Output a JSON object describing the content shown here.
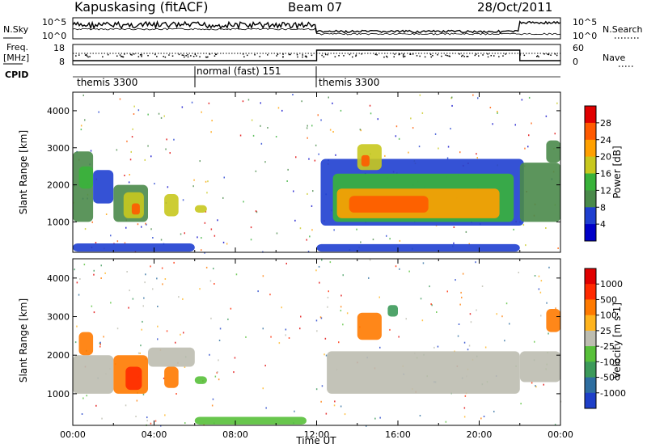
{
  "header": {
    "station": "Kapuskasing (fitACF)",
    "beam": "Beam 07",
    "date": "28/Oct/2011"
  },
  "noise_panel": {
    "left_label": "N.Sky",
    "right_label": "N.Search",
    "left_ticks": [
      "10^5",
      "10^0"
    ],
    "right_ticks": [
      "10^5",
      "10^0"
    ]
  },
  "freq_panel": {
    "left_label_1": "Freq.",
    "left_label_2": "[MHz]",
    "right_label": "Nave",
    "left_ticks": [
      "18",
      "8"
    ],
    "right_ticks": [
      "60",
      "0"
    ]
  },
  "cpid": {
    "label": "CPID",
    "segments": [
      {
        "name": "themis 3300",
        "start_hour": 0,
        "end_hour": 6
      },
      {
        "name": "normal (fast) 151",
        "start_hour": 6,
        "end_hour": 12
      },
      {
        "name": "themis 3300",
        "start_hour": 12,
        "end_hour": 24
      }
    ]
  },
  "power_colorbar": {
    "label": "Power [dB]",
    "ticks": [
      "28",
      "24",
      "20",
      "16",
      "12",
      "8",
      "4"
    ],
    "colors": [
      "#0000c8",
      "#1f3fd0",
      "#4a8a4a",
      "#39b23a",
      "#c8c81e",
      "#ffa000",
      "#ff5a00",
      "#e00000"
    ]
  },
  "velocity_colorbar": {
    "label": "Velocity [m s-1]",
    "ticks": [
      "1000",
      "500",
      "100",
      "25",
      "-25",
      "-100",
      "-500",
      "-1000"
    ],
    "colors": [
      "#1e3fc8",
      "#2e6ea0",
      "#3c9a5a",
      "#58c03a",
      "#bdbdb0",
      "#ffb41e",
      "#ff7a00",
      "#ff2a00",
      "#e00000"
    ]
  },
  "chart_data": [
    {
      "type": "heatmap",
      "ylabel": "Slant Range [km]",
      "ylim": [
        180,
        4500
      ],
      "yticks": [
        1000,
        2000,
        3000,
        4000
      ],
      "xlim": [
        0,
        24
      ],
      "regions": [
        {
          "t0": 0.0,
          "t1": 6.0,
          "r0": 200,
          "r1": 420,
          "level": 1
        },
        {
          "t0": 12.0,
          "t1": 22.0,
          "r0": 200,
          "r1": 400,
          "level": 1
        },
        {
          "t0": 0.0,
          "t1": 1.0,
          "r0": 1000,
          "r1": 2900,
          "level": 2
        },
        {
          "t0": 0.3,
          "t1": 1.0,
          "r0": 1900,
          "r1": 2500,
          "level": 3
        },
        {
          "t0": 1.0,
          "t1": 2.0,
          "r0": 1500,
          "r1": 2400,
          "level": 1
        },
        {
          "t0": 2.0,
          "t1": 3.7,
          "r0": 1000,
          "r1": 2000,
          "level": 2
        },
        {
          "t0": 2.5,
          "t1": 3.5,
          "r0": 1100,
          "r1": 1800,
          "level": 4
        },
        {
          "t0": 2.9,
          "t1": 3.3,
          "r0": 1200,
          "r1": 1500,
          "level": 6
        },
        {
          "t0": 4.5,
          "t1": 5.2,
          "r0": 1150,
          "r1": 1750,
          "level": 4
        },
        {
          "t0": 6.0,
          "t1": 6.6,
          "r0": 1250,
          "r1": 1450,
          "level": 4
        },
        {
          "t0": 12.2,
          "t1": 22.2,
          "r0": 900,
          "r1": 2700,
          "level": 1
        },
        {
          "t0": 12.8,
          "t1": 21.7,
          "r0": 1000,
          "r1": 2300,
          "level": 3
        },
        {
          "t0": 13.0,
          "t1": 21.0,
          "r0": 1100,
          "r1": 1900,
          "level": 5
        },
        {
          "t0": 13.6,
          "t1": 17.5,
          "r0": 1250,
          "r1": 1700,
          "level": 6
        },
        {
          "t0": 14.0,
          "t1": 15.2,
          "r0": 2400,
          "r1": 3100,
          "level": 4
        },
        {
          "t0": 14.2,
          "t1": 14.6,
          "r0": 2500,
          "r1": 2800,
          "level": 6
        },
        {
          "t0": 22.0,
          "t1": 24.0,
          "r0": 1000,
          "r1": 2600,
          "level": 2
        },
        {
          "t0": 23.3,
          "t1": 24.0,
          "r0": 2600,
          "r1": 3200,
          "level": 2
        }
      ]
    },
    {
      "type": "heatmap",
      "ylabel": "Slant Range [km]",
      "ylim": [
        180,
        4500
      ],
      "yticks": [
        1000,
        2000,
        3000,
        4000
      ],
      "xlim": [
        0,
        24
      ],
      "xlabel": "Time UT",
      "xticks": [
        "00:00",
        "04:00",
        "08:00",
        "12:00",
        "16:00",
        "20:00",
        "00:00"
      ],
      "regions": [
        {
          "t0": 0.0,
          "t1": 2.0,
          "r0": 1000,
          "r1": 2000,
          "level": 4
        },
        {
          "t0": 0.3,
          "t1": 1.0,
          "r0": 2000,
          "r1": 2600,
          "level": 6
        },
        {
          "t0": 2.0,
          "t1": 3.7,
          "r0": 1000,
          "r1": 2000,
          "level": 6
        },
        {
          "t0": 2.6,
          "t1": 3.4,
          "r0": 1100,
          "r1": 1700,
          "level": 7
        },
        {
          "t0": 3.7,
          "t1": 6.0,
          "r0": 1700,
          "r1": 2200,
          "level": 4
        },
        {
          "t0": 4.5,
          "t1": 5.2,
          "r0": 1150,
          "r1": 1700,
          "level": 6
        },
        {
          "t0": 6.0,
          "t1": 6.6,
          "r0": 1250,
          "r1": 1450,
          "level": 3
        },
        {
          "t0": 12.5,
          "t1": 22.0,
          "r0": 1000,
          "r1": 2100,
          "level": 4
        },
        {
          "t0": 14.0,
          "t1": 15.2,
          "r0": 2400,
          "r1": 3100,
          "level": 6
        },
        {
          "t0": 15.5,
          "t1": 16.0,
          "r0": 3000,
          "r1": 3300,
          "level": 2
        },
        {
          "t0": 22.0,
          "t1": 24.0,
          "r0": 1300,
          "r1": 2100,
          "level": 4
        },
        {
          "t0": 23.3,
          "t1": 24.0,
          "r0": 2600,
          "r1": 3200,
          "level": 6
        },
        {
          "t0": 6.0,
          "t1": 11.5,
          "r0": 200,
          "r1": 400,
          "level": 3
        }
      ]
    }
  ]
}
